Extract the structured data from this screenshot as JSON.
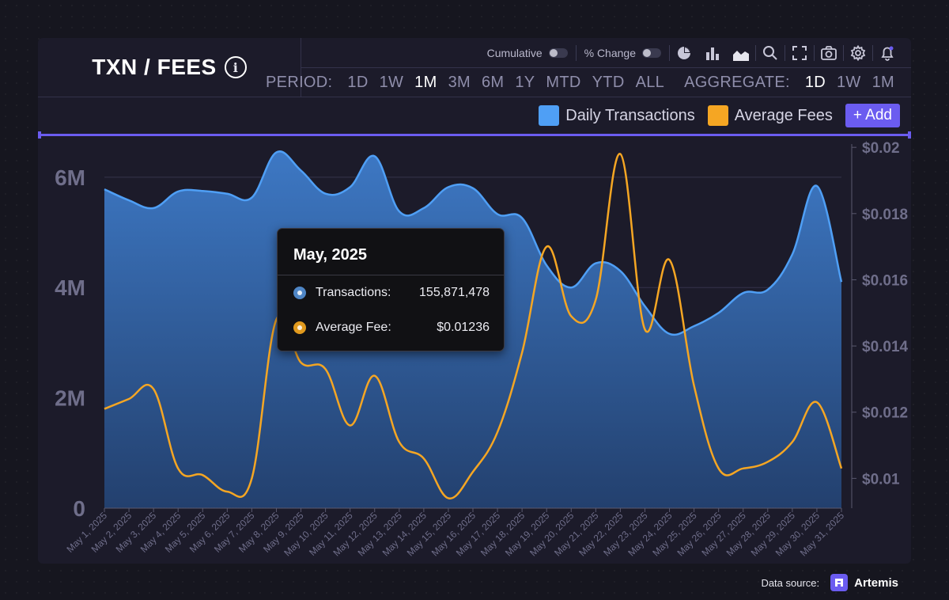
{
  "header": {
    "title": "TXN / FEES",
    "info_icon": "info-icon"
  },
  "toolbar": {
    "cumulative_label": "Cumulative",
    "pct_change_label": "% Change",
    "icons": [
      "pie-chart-icon",
      "bar-chart-icon",
      "area-chart-icon",
      "search-icon",
      "fullscreen-icon",
      "camera-icon",
      "gear-icon",
      "bell-icon"
    ]
  },
  "period": {
    "label": "PERIOD:",
    "options": [
      "1D",
      "1W",
      "1M",
      "3M",
      "6M",
      "1Y",
      "MTD",
      "YTD",
      "ALL"
    ],
    "selected": "1M"
  },
  "aggregate": {
    "label": "AGGREGATE:",
    "options": [
      "1D",
      "1W",
      "1M"
    ],
    "selected": "1D"
  },
  "legend": {
    "items": [
      {
        "label": "Daily Transactions",
        "color": "#4f9ff5"
      },
      {
        "label": "Average Fees",
        "color": "#f5a623"
      }
    ],
    "add_label": "+ Add"
  },
  "tooltip": {
    "title": "May, 2025",
    "rows": [
      {
        "label": "Transactions:",
        "value": "155,871,478",
        "color": "#4f86c6"
      },
      {
        "label": "Average Fee:",
        "value": "$0.01236",
        "color": "#e19a1e"
      }
    ]
  },
  "footer": {
    "source_label": "Data source:",
    "brand": "Artemis"
  },
  "chart_data": {
    "type": "line",
    "categories": [
      "May 1, 2025",
      "May 2, 2025",
      "May 3, 2025",
      "May 4, 2025",
      "May 5, 2025",
      "May 6, 2025",
      "May 7, 2025",
      "May 8, 2025",
      "May 9, 2025",
      "May 10, 2025",
      "May 11, 2025",
      "May 12, 2025",
      "May 13, 2025",
      "May 14, 2025",
      "May 15, 2025",
      "May 16, 2025",
      "May 17, 2025",
      "May 18, 2025",
      "May 19, 2025",
      "May 20, 2025",
      "May 21, 2025",
      "May 22, 2025",
      "May 23, 2025",
      "May 24, 2025",
      "May 25, 2025",
      "May 26, 2025",
      "May 27, 2025",
      "May 28, 2025",
      "May 29, 2025",
      "May 30, 2025",
      "May 31, 2025"
    ],
    "series": [
      {
        "name": "Daily Transactions",
        "axis": "left",
        "style": "area",
        "color": "#4f9ff5",
        "values": [
          5780000,
          5580000,
          5440000,
          5740000,
          5750000,
          5700000,
          5630000,
          6450000,
          6120000,
          5700000,
          5820000,
          6380000,
          5380000,
          5440000,
          5820000,
          5800000,
          5330000,
          5260000,
          4400000,
          4000000,
          4440000,
          4300000,
          3660000,
          3160000,
          3300000,
          3540000,
          3900000,
          3960000,
          4600000,
          5840000,
          4100000
        ]
      },
      {
        "name": "Average Fees",
        "axis": "right",
        "style": "line",
        "color": "#f5a623",
        "values": [
          0.0121,
          0.0124,
          0.0127,
          0.0103,
          0.0101,
          0.0096,
          0.01,
          0.0148,
          0.0135,
          0.0133,
          0.0116,
          0.0131,
          0.0111,
          0.0106,
          0.0094,
          0.0102,
          0.0114,
          0.0138,
          0.017,
          0.0149,
          0.0154,
          0.0198,
          0.0145,
          0.0166,
          0.0128,
          0.0103,
          0.0103,
          0.0105,
          0.0111,
          0.0123,
          0.0103
        ]
      }
    ],
    "y_left": {
      "ticks": [
        "0",
        "2M",
        "4M",
        "6M"
      ],
      "tick_values": [
        0,
        2000000,
        4000000,
        6000000
      ],
      "range": [
        0,
        6600000
      ]
    },
    "y_right": {
      "ticks": [
        "$0.01",
        "$0.012",
        "$0.014",
        "$0.016",
        "$0.018",
        "$0.02"
      ],
      "tick_values": [
        0.01,
        0.012,
        0.014,
        0.016,
        0.018,
        0.02
      ],
      "range": [
        0.0091,
        0.0201
      ]
    },
    "grid": true
  }
}
